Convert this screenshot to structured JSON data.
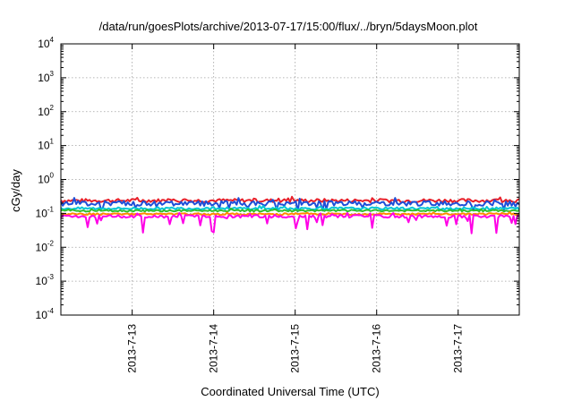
{
  "chart_data": {
    "type": "line",
    "title": "/data/run/goesPlots/archive/2013-07-17/15:00/flux/../bryn/5daysMoon.plot",
    "xlabel": "Coordinated Universal Time (UTC)",
    "ylabel": "cGy/day",
    "yscale": "log",
    "ylim": [
      0.0001,
      10000
    ],
    "xlim": [
      "2013-07-12T03:00",
      "2013-07-17T18:00"
    ],
    "y_ticks": [
      {
        "base": "10",
        "exp": "4",
        "value": 10000
      },
      {
        "base": "10",
        "exp": "3",
        "value": 1000
      },
      {
        "base": "10",
        "exp": "2",
        "value": 100
      },
      {
        "base": "10",
        "exp": "1",
        "value": 10
      },
      {
        "base": "10",
        "exp": "0",
        "value": 1
      },
      {
        "base": "10",
        "exp": "-1",
        "value": 0.1
      },
      {
        "base": "10",
        "exp": "-2",
        "value": 0.01
      },
      {
        "base": "10",
        "exp": "-3",
        "value": 0.001
      },
      {
        "base": "10",
        "exp": "-4",
        "value": 0.0001
      }
    ],
    "x_ticks": [
      {
        "label": "2013-7-13",
        "date": "2013-07-13T00:00"
      },
      {
        "label": "2013-7-14",
        "date": "2013-07-14T00:00"
      },
      {
        "label": "2013-7-15",
        "date": "2013-07-15T00:00"
      },
      {
        "label": "2013-7-16",
        "date": "2013-07-16T00:00"
      },
      {
        "label": "2013-7-17",
        "date": "2013-07-17T00:00"
      }
    ],
    "grid": true,
    "series": [
      {
        "color": "#e8202a",
        "level": 0.24,
        "spread": 0.12,
        "dip": 0.0
      },
      {
        "color": "#1e4fd8",
        "level": 0.2,
        "spread": 0.16,
        "dip": 0.35
      },
      {
        "color": "#00c6d6",
        "level": 0.14,
        "spread": 0.08,
        "dip": 0.0
      },
      {
        "color": "#2fbf2f",
        "level": 0.12,
        "spread": 0.06,
        "dip": 0.0
      },
      {
        "color": "#ff8a00",
        "level": 0.095,
        "spread": 0.06,
        "dip": 0.0
      },
      {
        "color": "#ff00e6",
        "level": 0.082,
        "spread": 0.1,
        "dip": 0.7
      }
    ]
  }
}
